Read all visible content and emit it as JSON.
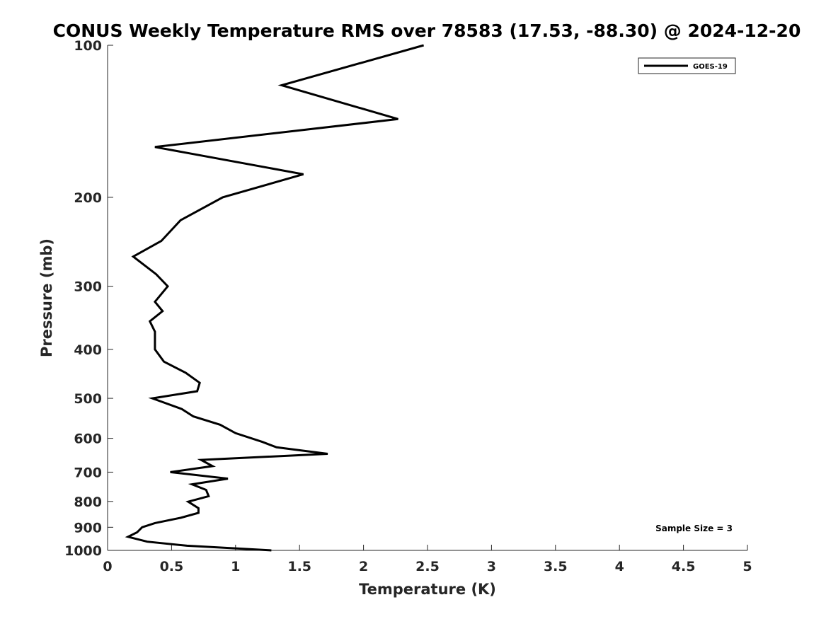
{
  "chart_data": {
    "type": "line",
    "title": "CONUS Weekly Temperature RMS over 78583 (17.53, -88.30) @ 2024-12-20",
    "xlabel": "Temperature (K)",
    "ylabel": "Pressure (mb)",
    "xlim": [
      0,
      5
    ],
    "ylim": [
      100,
      1000
    ],
    "y_scale": "log",
    "y_reversed": true,
    "grid": false,
    "legend_position": "top-right",
    "x_ticks": [
      "0",
      "0.5",
      "1",
      "1.5",
      "2",
      "2.5",
      "3",
      "3.5",
      "4",
      "4.5",
      "5"
    ],
    "y_ticks": [
      "100",
      "200",
      "300",
      "400",
      "500",
      "600",
      "700",
      "800",
      "900",
      "1000"
    ],
    "annotation": "Sample Size = 3",
    "series": [
      {
        "name": "GOES-19",
        "color": "#000000",
        "points": [
          [
            2.47,
            100
          ],
          [
            1.36,
            120
          ],
          [
            2.27,
            140
          ],
          [
            0.37,
            159
          ],
          [
            1.53,
            180
          ],
          [
            0.9,
            200
          ],
          [
            0.57,
            222
          ],
          [
            0.42,
            244
          ],
          [
            0.2,
            262
          ],
          [
            0.38,
            284
          ],
          [
            0.47,
            300
          ],
          [
            0.37,
            322
          ],
          [
            0.43,
            336
          ],
          [
            0.33,
            352
          ],
          [
            0.37,
            369
          ],
          [
            0.37,
            400
          ],
          [
            0.44,
            423
          ],
          [
            0.61,
            445
          ],
          [
            0.72,
            466
          ],
          [
            0.7,
            484
          ],
          [
            0.35,
            500
          ],
          [
            0.58,
            525
          ],
          [
            0.67,
            543
          ],
          [
            0.88,
            564
          ],
          [
            1.0,
            586
          ],
          [
            1.21,
            610
          ],
          [
            1.32,
            625
          ],
          [
            1.72,
            644
          ],
          [
            0.73,
            662
          ],
          [
            0.82,
            681
          ],
          [
            0.49,
            700
          ],
          [
            0.94,
            721
          ],
          [
            0.66,
            740
          ],
          [
            0.77,
            759
          ],
          [
            0.79,
            781
          ],
          [
            0.63,
            801
          ],
          [
            0.71,
            825
          ],
          [
            0.71,
            843
          ],
          [
            0.57,
            862
          ],
          [
            0.37,
            883
          ],
          [
            0.27,
            900
          ],
          [
            0.23,
            921
          ],
          [
            0.16,
            940
          ],
          [
            0.31,
            961
          ],
          [
            0.62,
            979
          ],
          [
            1.28,
            1000
          ]
        ]
      }
    ]
  }
}
